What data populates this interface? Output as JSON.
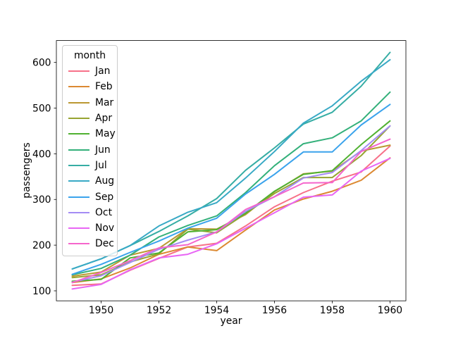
{
  "chart_data": {
    "type": "line",
    "title": "",
    "xlabel": "year",
    "ylabel": "passengers",
    "legend_title": "month",
    "legend_position": "upper-left",
    "grid": false,
    "x": [
      1949,
      1950,
      1951,
      1952,
      1953,
      1954,
      1955,
      1956,
      1957,
      1958,
      1959,
      1960
    ],
    "xlim": [
      1948.45,
      1960.55
    ],
    "ylim": [
      78.1,
      647.9
    ],
    "xticks": [
      1950,
      1952,
      1954,
      1956,
      1958,
      1960
    ],
    "yticks": [
      100,
      200,
      300,
      400,
      500,
      600
    ],
    "series": [
      {
        "name": "Jan",
        "color": "#f77189",
        "values": [
          112,
          115,
          145,
          171,
          196,
          204,
          242,
          284,
          315,
          340,
          360,
          417
        ]
      },
      {
        "name": "Feb",
        "color": "#dc8932",
        "values": [
          118,
          126,
          150,
          180,
          196,
          188,
          233,
          277,
          301,
          318,
          342,
          391
        ]
      },
      {
        "name": "Mar",
        "color": "#bb9832",
        "values": [
          132,
          141,
          178,
          193,
          236,
          235,
          267,
          317,
          356,
          362,
          406,
          419
        ]
      },
      {
        "name": "Apr",
        "color": "#97a431",
        "values": [
          129,
          135,
          163,
          181,
          235,
          227,
          269,
          313,
          348,
          348,
          396,
          461
        ]
      },
      {
        "name": "May",
        "color": "#50b131",
        "values": [
          121,
          125,
          172,
          183,
          229,
          234,
          270,
          318,
          355,
          363,
          420,
          472
        ]
      },
      {
        "name": "Jun",
        "color": "#33b07a",
        "values": [
          135,
          149,
          178,
          218,
          243,
          264,
          315,
          374,
          422,
          435,
          472,
          535
        ]
      },
      {
        "name": "Jul",
        "color": "#36ada4",
        "values": [
          148,
          170,
          199,
          230,
          264,
          302,
          364,
          413,
          465,
          491,
          548,
          622
        ]
      },
      {
        "name": "Aug",
        "color": "#38a9c5",
        "values": [
          148,
          170,
          199,
          242,
          272,
          293,
          347,
          405,
          467,
          505,
          559,
          606
        ]
      },
      {
        "name": "Sep",
        "color": "#3ba3ec",
        "values": [
          136,
          158,
          184,
          209,
          237,
          259,
          312,
          355,
          404,
          404,
          463,
          508
        ]
      },
      {
        "name": "Oct",
        "color": "#a48cf4",
        "values": [
          119,
          133,
          162,
          191,
          211,
          229,
          274,
          306,
          347,
          359,
          407,
          461
        ]
      },
      {
        "name": "Nov",
        "color": "#e866f4",
        "values": [
          104,
          114,
          146,
          172,
          180,
          203,
          237,
          271,
          305,
          310,
          362,
          390
        ]
      },
      {
        "name": "Dec",
        "color": "#f565cc",
        "values": [
          118,
          140,
          166,
          194,
          201,
          229,
          278,
          306,
          336,
          337,
          405,
          432
        ]
      }
    ]
  }
}
